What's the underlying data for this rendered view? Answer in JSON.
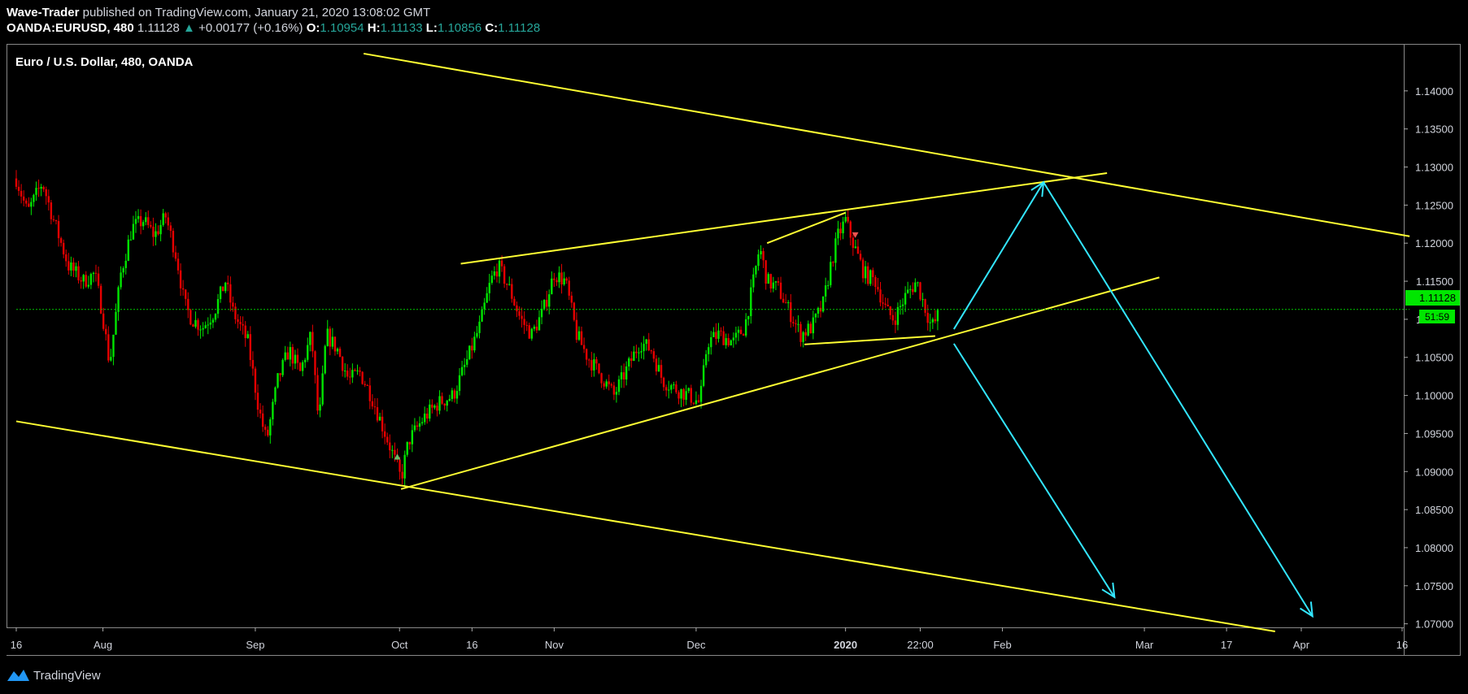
{
  "header": {
    "author": "Wave-Trader",
    "published": "published on TradingView.com, January 21, 2020 13:08:02 GMT",
    "symbol": "OANDA:EURUSD, 480",
    "last": "1.11128",
    "change": "+0.00177 (+0.16%)",
    "open_label": "O:",
    "open": "1.10954",
    "high_label": "H:",
    "high": "1.11133",
    "low_label": "L:",
    "low": "1.10856",
    "close_label": "C:",
    "close": "1.11128"
  },
  "chart_title": "Euro / U.S. Dollar, 480, OANDA",
  "price_tag": "1.11128",
  "countdown": "51:59",
  "footer_brand": "TradingView",
  "colors": {
    "up": "#00e600",
    "down": "#e60000",
    "trendline": "#ffff33",
    "arrow": "#33e6ff",
    "bg": "#000000",
    "price_line": "#00c800"
  },
  "chart_data": {
    "type": "candlestick",
    "title": "Euro / U.S. Dollar, 480, OANDA",
    "y_ticks": [
      "1.14000",
      "1.13500",
      "1.13000",
      "1.12500",
      "1.12000",
      "1.11500",
      "1.11000",
      "1.10500",
      "1.10000",
      "1.09500",
      "1.09000",
      "1.08500",
      "1.08000",
      "1.07500",
      "1.07000"
    ],
    "ylim": [
      1.069,
      1.145
    ],
    "x_ticks": [
      {
        "label": "16",
        "x": 0.0
      },
      {
        "label": "Aug",
        "x": 11.6
      },
      {
        "label": "Sep",
        "x": 32.0
      },
      {
        "label": "Oct",
        "x": 51.3
      },
      {
        "label": "16",
        "x": 61.0
      },
      {
        "label": "Nov",
        "x": 72.0
      },
      {
        "label": "Dec",
        "x": 91.0
      },
      {
        "label": "2020",
        "x": 111.0,
        "bold": true
      },
      {
        "label": "22:00",
        "x": 121.0
      },
      {
        "label": "Feb",
        "x": 132.0
      },
      {
        "label": "Mar",
        "x": 151.0
      },
      {
        "label": "17",
        "x": 162.0
      },
      {
        "label": "Apr",
        "x": 172.0
      },
      {
        "label": "16",
        "x": 185.5
      }
    ],
    "x_unit": "days since Jul 16 2019",
    "price_anchors": [
      [
        0,
        1.1285
      ],
      [
        1.5,
        1.124
      ],
      [
        3.5,
        1.128
      ],
      [
        5,
        1.123
      ],
      [
        7,
        1.117
      ],
      [
        9,
        1.115
      ],
      [
        10.5,
        1.116
      ],
      [
        11.5,
        1.111
      ],
      [
        12.5,
        1.104
      ],
      [
        14,
        1.116
      ],
      [
        15.5,
        1.122
      ],
      [
        17,
        1.123
      ],
      [
        18.5,
        1.121
      ],
      [
        20,
        1.1235
      ],
      [
        21.5,
        1.118
      ],
      [
        22.5,
        1.112
      ],
      [
        23.5,
        1.11
      ],
      [
        25,
        1.109
      ],
      [
        26.5,
        1.111
      ],
      [
        28,
        1.115
      ],
      [
        29,
        1.111
      ],
      [
        31,
        1.107
      ],
      [
        32.5,
        1.098
      ],
      [
        33.5,
        1.094
      ],
      [
        35,
        1.102
      ],
      [
        36.5,
        1.106
      ],
      [
        38,
        1.103
      ],
      [
        39.5,
        1.108
      ],
      [
        40.5,
        1.096
      ],
      [
        41.5,
        1.108
      ],
      [
        43,
        1.106
      ],
      [
        44.5,
        1.102
      ],
      [
        46,
        1.103
      ],
      [
        47.5,
        1.1
      ],
      [
        49,
        1.096
      ],
      [
        50.5,
        1.092
      ],
      [
        51.5,
        1.089
      ],
      [
        52.5,
        1.094
      ],
      [
        54.5,
        1.097
      ],
      [
        56.5,
        1.099
      ],
      [
        58.5,
        1.1
      ],
      [
        60.5,
        1.105
      ],
      [
        62,
        1.109
      ],
      [
        63.5,
        1.115
      ],
      [
        64.5,
        1.117
      ],
      [
        66,
        1.114
      ],
      [
        67.5,
        1.11
      ],
      [
        69,
        1.108
      ],
      [
        70.5,
        1.111
      ],
      [
        72,
        1.116
      ],
      [
        73.5,
        1.115
      ],
      [
        75,
        1.108
      ],
      [
        76.5,
        1.105
      ],
      [
        78,
        1.103
      ],
      [
        80,
        1.1
      ],
      [
        82,
        1.104
      ],
      [
        83.5,
        1.107
      ],
      [
        85,
        1.106
      ],
      [
        86.5,
        1.102
      ],
      [
        88,
        1.101
      ],
      [
        90,
        1.1
      ],
      [
        91.5,
        1.099
      ],
      [
        92.5,
        1.107
      ],
      [
        94,
        1.108
      ],
      [
        96,
        1.107
      ],
      [
        97.5,
        1.109
      ],
      [
        98.5,
        1.114
      ],
      [
        99.5,
        1.1195
      ],
      [
        100.5,
        1.115
      ],
      [
        102,
        1.114
      ],
      [
        103.5,
        1.111
      ],
      [
        105,
        1.108
      ],
      [
        106.5,
        1.109
      ],
      [
        108,
        1.112
      ],
      [
        109,
        1.117
      ],
      [
        110,
        1.121
      ],
      [
        111,
        1.123
      ],
      [
        112,
        1.12
      ],
      [
        113.5,
        1.116
      ],
      [
        115,
        1.115
      ],
      [
        116.5,
        1.111
      ],
      [
        117.5,
        1.11
      ],
      [
        119,
        1.113
      ],
      [
        120.5,
        1.115
      ],
      [
        121.5,
        1.112
      ],
      [
        122.5,
        1.109
      ],
      [
        123.2,
        1.11
      ],
      [
        123.6,
        1.1113
      ]
    ],
    "annotation_lines": [
      {
        "name": "upper-channel",
        "color": "yellow",
        "from": [
          46.5,
          1.1449
        ],
        "to": [
          186.5,
          1.1209
        ]
      },
      {
        "name": "lower-channel",
        "color": "yellow",
        "from": [
          0,
          1.0966
        ],
        "to": [
          168.5,
          1.069
        ]
      },
      {
        "name": "rising-support",
        "color": "yellow",
        "from": [
          51.5,
          1.0877
        ],
        "to": [
          153,
          1.1155
        ]
      },
      {
        "name": "rising-resistance",
        "color": "yellow",
        "from": [
          59.5,
          1.1173
        ],
        "to": [
          146,
          1.1292
        ]
      },
      {
        "name": "wedge-top",
        "color": "yellow",
        "from": [
          100.5,
          1.12
        ],
        "to": [
          111,
          1.124
        ]
      },
      {
        "name": "wedge-bottom",
        "color": "yellow",
        "from": [
          105.5,
          1.1067
        ],
        "to": [
          123,
          1.1078
        ]
      },
      {
        "name": "price-line",
        "color": "green-dotted",
        "from": [
          0,
          1.1113
        ],
        "to": [
          186.5,
          1.1113
        ]
      }
    ],
    "arrows": [
      {
        "name": "arrow-up",
        "from": [
          125.5,
          1.1087
        ],
        "to": [
          137.5,
          1.128
        ]
      },
      {
        "name": "arrow-down-target-1",
        "from": [
          125.5,
          1.1068
        ],
        "to": [
          147,
          1.0735
        ]
      },
      {
        "name": "arrow-down-target-2",
        "from": [
          137.5,
          1.128
        ],
        "to": [
          173.5,
          1.071
        ]
      }
    ],
    "signal_markers": [
      {
        "type": "buy",
        "x": 51,
        "y": 1.092
      },
      {
        "type": "sell",
        "x": 112.3,
        "y": 1.121
      }
    ]
  }
}
